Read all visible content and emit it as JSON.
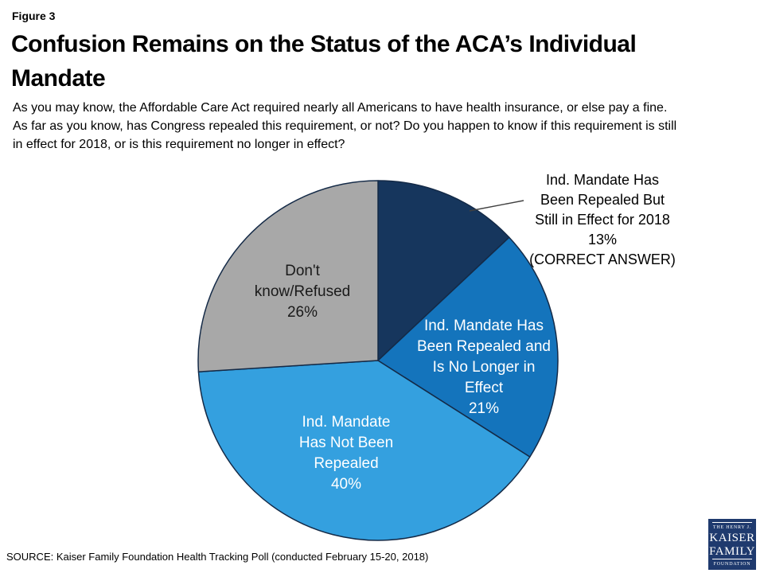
{
  "header": {
    "figure_label": "Figure 3",
    "title_lines": [
      "Confusion Remains on the Status of the ACA’s Individual",
      "Mandate"
    ],
    "subtitle_lines": [
      "As you may know, the Affordable Care Act required nearly all Americans to have health insurance, or else pay a fine.",
      "As far as you know, has Congress repealed this requirement, or not? Do you happen to know if this requirement is still",
      "in effect for 2018, or is this requirement no longer in effect?"
    ]
  },
  "chart_data": {
    "type": "pie",
    "title": "",
    "units": "%",
    "total": 100,
    "start_angle_deg": 0,
    "direction": "clockwise",
    "legend": "none",
    "stroke_color": "#142A47",
    "slices": [
      {
        "name": "Ind. Mandate Has Been Repealed But Still in Effect for 2018",
        "value_pct": 13,
        "color": "#16365D",
        "note": "(CORRECT ANSWER)",
        "label_placement": "outside",
        "text_color": "#000000",
        "label_lines": [
          "Ind. Mandate Has",
          "Been Repealed But",
          "Still in Effect for 2018",
          "13%",
          "(CORRECT ANSWER)"
        ]
      },
      {
        "name": "Ind. Mandate Has Been Repealed and Is No Longer in Effect",
        "value_pct": 21,
        "color": "#1474BC",
        "label_placement": "inside",
        "text_color": "#FFFFFF",
        "label_lines": [
          "Ind. Mandate Has",
          "Been Repealed and",
          "Is No Longer in",
          "Effect",
          "21%"
        ]
      },
      {
        "name": "Ind. Mandate Has Not Been Repealed",
        "value_pct": 40,
        "color": "#34A0DF",
        "label_placement": "inside",
        "text_color": "#FFFFFF",
        "label_lines": [
          "Ind. Mandate",
          "Has Not Been",
          "Repealed",
          "40%"
        ]
      },
      {
        "name": "Don't know/Refused",
        "value_pct": 26,
        "color": "#A8A8A8",
        "label_placement": "inside",
        "text_color": "#1A1A1A",
        "label_lines": [
          "Don't",
          "know/Refused",
          "26%"
        ]
      }
    ]
  },
  "footer": {
    "source": "SOURCE: Kaiser Family Foundation Health Tracking Poll (conducted February 15-20, 2018)",
    "logo": {
      "line1": "THE HENRY J.",
      "line2": "KAISER",
      "line3": "FAMILY",
      "line4": "FOUNDATION",
      "bg_color": "#1F3A6E"
    }
  }
}
